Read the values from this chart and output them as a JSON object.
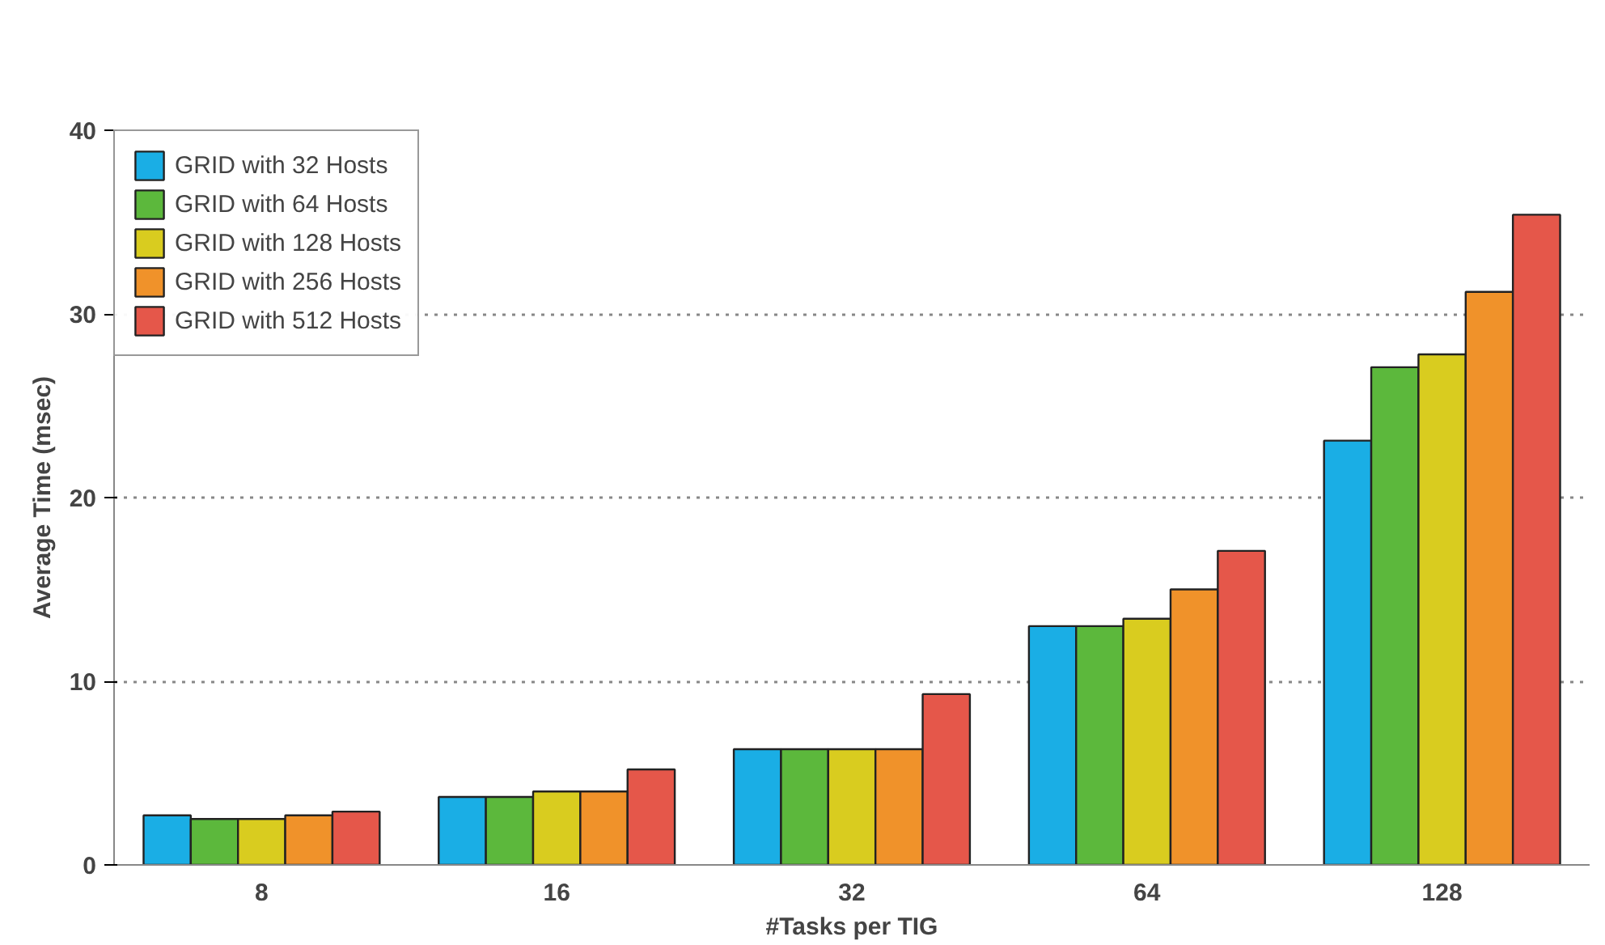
{
  "chart_data": {
    "type": "bar",
    "xlabel": "#Tasks per TIG",
    "ylabel": "Average Time (msec)",
    "categories": [
      "8",
      "16",
      "32",
      "64",
      "128"
    ],
    "series": [
      {
        "name": "GRID with 32 Hosts",
        "color": "#1aaee5",
        "values": [
          2.7,
          3.7,
          6.3,
          13.0,
          23.1
        ]
      },
      {
        "name": "GRID with 64 Hosts",
        "color": "#5cb83c",
        "values": [
          2.5,
          3.7,
          6.3,
          13.0,
          27.1
        ]
      },
      {
        "name": "GRID with 128 Hosts",
        "color": "#d9cc1f",
        "values": [
          2.5,
          4.0,
          6.3,
          13.4,
          27.8
        ]
      },
      {
        "name": "GRID with 256 Hosts",
        "color": "#f0922a",
        "values": [
          2.7,
          4.0,
          6.3,
          15.0,
          31.2
        ]
      },
      {
        "name": "GRID with 512 Hosts",
        "color": "#e5574a",
        "values": [
          2.9,
          5.2,
          9.3,
          17.1,
          35.4
        ]
      }
    ],
    "ylim": [
      0,
      40
    ],
    "yticks": [
      0,
      10,
      20,
      30,
      40
    ],
    "grid": "y",
    "legend": "top left"
  }
}
